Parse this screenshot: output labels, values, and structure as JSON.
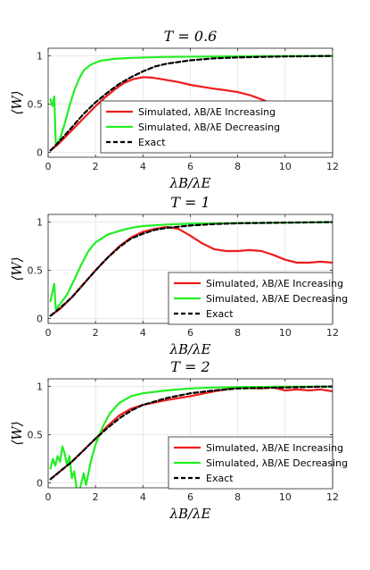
{
  "chart_data": [
    {
      "type": "line",
      "title": "T = 0.6",
      "xlabel": "λB/λE",
      "ylabel": "⟨W⟩",
      "xlim": [
        0,
        12
      ],
      "ylim": [
        -0.05,
        1.08
      ],
      "xticks": [
        "0",
        "2",
        "4",
        "6",
        "8",
        "10",
        "12"
      ],
      "yticks": [
        "0",
        "0.5",
        "1"
      ],
      "grid": true,
      "legend_position": "center-right",
      "series": [
        {
          "name": "Simulated, λB/λE Increasing",
          "color": "#ee1c1c",
          "dash": false,
          "points": [
            [
              0.1,
              0.02
            ],
            [
              0.4,
              0.08
            ],
            [
              0.8,
              0.18
            ],
            [
              1.2,
              0.28
            ],
            [
              1.6,
              0.38
            ],
            [
              2.0,
              0.48
            ],
            [
              2.4,
              0.57
            ],
            [
              2.8,
              0.65
            ],
            [
              3.2,
              0.72
            ],
            [
              3.6,
              0.76
            ],
            [
              4.0,
              0.78
            ],
            [
              4.4,
              0.775
            ],
            [
              5.0,
              0.75
            ],
            [
              5.5,
              0.73
            ],
            [
              6.0,
              0.7
            ],
            [
              6.5,
              0.68
            ],
            [
              7.0,
              0.66
            ],
            [
              7.5,
              0.645
            ],
            [
              8.0,
              0.625
            ],
            [
              8.5,
              0.595
            ],
            [
              9.0,
              0.55
            ],
            [
              9.5,
              0.5
            ],
            [
              10.0,
              0.455
            ],
            [
              10.5,
              0.42
            ],
            [
              11.0,
              0.4
            ],
            [
              11.5,
              0.395
            ],
            [
              12.0,
              0.4
            ]
          ]
        },
        {
          "name": "Simulated, λB/λE Decreasing",
          "color": "#22ee22",
          "dash": false,
          "points": [
            [
              0.1,
              0.55
            ],
            [
              0.18,
              0.48
            ],
            [
              0.26,
              0.58
            ],
            [
              0.32,
              0.1
            ],
            [
              0.4,
              0.1
            ],
            [
              0.5,
              0.14
            ],
            [
              0.7,
              0.3
            ],
            [
              0.9,
              0.48
            ],
            [
              1.1,
              0.64
            ],
            [
              1.3,
              0.76
            ],
            [
              1.5,
              0.85
            ],
            [
              1.8,
              0.91
            ],
            [
              2.2,
              0.95
            ],
            [
              2.8,
              0.97
            ],
            [
              3.5,
              0.98
            ],
            [
              5.0,
              0.99
            ],
            [
              7.0,
              0.995
            ],
            [
              9.0,
              0.998
            ],
            [
              12.0,
              1.0
            ]
          ]
        },
        {
          "name": "Exact",
          "color": "#000000",
          "dash": true,
          "points": [
            [
              0.1,
              0.02
            ],
            [
              0.5,
              0.12
            ],
            [
              1.0,
              0.26
            ],
            [
              1.5,
              0.4
            ],
            [
              2.0,
              0.52
            ],
            [
              2.5,
              0.62
            ],
            [
              3.0,
              0.71
            ],
            [
              3.5,
              0.78
            ],
            [
              4.0,
              0.84
            ],
            [
              4.5,
              0.89
            ],
            [
              5.0,
              0.92
            ],
            [
              6.0,
              0.955
            ],
            [
              7.0,
              0.975
            ],
            [
              8.0,
              0.985
            ],
            [
              9.0,
              0.99
            ],
            [
              10.0,
              0.995
            ],
            [
              12.0,
              1.0
            ]
          ]
        }
      ]
    },
    {
      "type": "line",
      "title": "T = 1",
      "xlabel": "λB/λE",
      "ylabel": "⟨W⟩",
      "xlim": [
        0,
        12
      ],
      "ylim": [
        -0.05,
        1.08
      ],
      "xticks": [
        "0",
        "2",
        "4",
        "6",
        "8",
        "10",
        "12"
      ],
      "yticks": [
        "0",
        "0.5",
        "1"
      ],
      "grid": true,
      "legend_position": "bottom-right",
      "series": [
        {
          "name": "Simulated, λB/λE Increasing",
          "color": "#ee1c1c",
          "dash": false,
          "points": [
            [
              0.1,
              0.03
            ],
            [
              0.5,
              0.1
            ],
            [
              1.0,
              0.22
            ],
            [
              1.5,
              0.36
            ],
            [
              2.0,
              0.5
            ],
            [
              2.5,
              0.63
            ],
            [
              3.0,
              0.75
            ],
            [
              3.5,
              0.84
            ],
            [
              4.0,
              0.9
            ],
            [
              4.5,
              0.93
            ],
            [
              5.0,
              0.95
            ],
            [
              5.5,
              0.93
            ],
            [
              6.0,
              0.86
            ],
            [
              6.5,
              0.78
            ],
            [
              7.0,
              0.72
            ],
            [
              7.5,
              0.7
            ],
            [
              8.0,
              0.7
            ],
            [
              8.5,
              0.71
            ],
            [
              9.0,
              0.7
            ],
            [
              9.5,
              0.66
            ],
            [
              10.0,
              0.61
            ],
            [
              10.5,
              0.58
            ],
            [
              11.0,
              0.58
            ],
            [
              11.5,
              0.59
            ],
            [
              12.0,
              0.58
            ]
          ]
        },
        {
          "name": "Simulated, λB/λE Decreasing",
          "color": "#22ee22",
          "dash": false,
          "points": [
            [
              0.1,
              0.18
            ],
            [
              0.18,
              0.28
            ],
            [
              0.26,
              0.36
            ],
            [
              0.32,
              0.1
            ],
            [
              0.4,
              0.12
            ],
            [
              0.5,
              0.15
            ],
            [
              0.8,
              0.25
            ],
            [
              1.1,
              0.4
            ],
            [
              1.4,
              0.56
            ],
            [
              1.7,
              0.7
            ],
            [
              2.0,
              0.79
            ],
            [
              2.5,
              0.87
            ],
            [
              3.0,
              0.91
            ],
            [
              3.5,
              0.94
            ],
            [
              4.0,
              0.96
            ],
            [
              5.0,
              0.975
            ],
            [
              6.0,
              0.985
            ],
            [
              8.0,
              0.99
            ],
            [
              10.0,
              0.995
            ],
            [
              12.0,
              1.0
            ]
          ]
        },
        {
          "name": "Exact",
          "color": "#000000",
          "dash": true,
          "points": [
            [
              0.1,
              0.03
            ],
            [
              0.5,
              0.11
            ],
            [
              1.0,
              0.22
            ],
            [
              1.5,
              0.36
            ],
            [
              2.0,
              0.5
            ],
            [
              2.5,
              0.63
            ],
            [
              3.0,
              0.74
            ],
            [
              3.5,
              0.83
            ],
            [
              4.0,
              0.88
            ],
            [
              4.5,
              0.92
            ],
            [
              5.0,
              0.94
            ],
            [
              6.0,
              0.965
            ],
            [
              7.0,
              0.98
            ],
            [
              8.0,
              0.988
            ],
            [
              10.0,
              0.995
            ],
            [
              12.0,
              1.0
            ]
          ]
        }
      ]
    },
    {
      "type": "line",
      "title": "T = 2",
      "xlabel": "λB/λE",
      "ylabel": "⟨W⟩",
      "xlim": [
        0,
        12
      ],
      "ylim": [
        -0.05,
        1.08
      ],
      "xticks": [
        "0",
        "2",
        "4",
        "6",
        "8",
        "10",
        "12"
      ],
      "yticks": [
        "0",
        "0.5",
        "1"
      ],
      "grid": true,
      "legend_position": "bottom-right",
      "series": [
        {
          "name": "Simulated, λB/λE Increasing",
          "color": "#ee1c1c",
          "dash": false,
          "points": [
            [
              0.1,
              0.04
            ],
            [
              0.5,
              0.12
            ],
            [
              1.0,
              0.22
            ],
            [
              1.5,
              0.34
            ],
            [
              2.0,
              0.46
            ],
            [
              2.5,
              0.59
            ],
            [
              3.0,
              0.7
            ],
            [
              3.5,
              0.77
            ],
            [
              4.0,
              0.81
            ],
            [
              5.0,
              0.86
            ],
            [
              6.0,
              0.9
            ],
            [
              7.0,
              0.95
            ],
            [
              8.0,
              0.99
            ],
            [
              9.0,
              0.98
            ],
            [
              9.5,
              0.99
            ],
            [
              10.0,
              0.96
            ],
            [
              10.5,
              0.97
            ],
            [
              11.0,
              0.96
            ],
            [
              11.5,
              0.97
            ],
            [
              12.0,
              0.95
            ]
          ]
        },
        {
          "name": "Simulated, λB/λE Decreasing",
          "color": "#22ee22",
          "dash": false,
          "points": [
            [
              0.1,
              0.15
            ],
            [
              0.2,
              0.25
            ],
            [
              0.3,
              0.18
            ],
            [
              0.4,
              0.28
            ],
            [
              0.5,
              0.22
            ],
            [
              0.6,
              0.38
            ],
            [
              0.7,
              0.3
            ],
            [
              0.8,
              0.18
            ],
            [
              0.9,
              0.28
            ],
            [
              1.0,
              0.05
            ],
            [
              1.1,
              0.12
            ],
            [
              1.2,
              -0.05
            ],
            [
              1.3,
              -0.1
            ],
            [
              1.4,
              0.0
            ],
            [
              1.5,
              0.1
            ],
            [
              1.6,
              -0.02
            ],
            [
              1.8,
              0.22
            ],
            [
              2.0,
              0.4
            ],
            [
              2.3,
              0.58
            ],
            [
              2.6,
              0.72
            ],
            [
              3.0,
              0.83
            ],
            [
              3.5,
              0.9
            ],
            [
              4.0,
              0.93
            ],
            [
              5.0,
              0.96
            ],
            [
              6.0,
              0.98
            ],
            [
              7.0,
              0.99
            ],
            [
              8.0,
              0.995
            ],
            [
              10.0,
              0.998
            ],
            [
              12.0,
              1.0
            ]
          ]
        },
        {
          "name": "Exact",
          "color": "#000000",
          "dash": true,
          "points": [
            [
              0.1,
              0.04
            ],
            [
              0.5,
              0.12
            ],
            [
              1.0,
              0.22
            ],
            [
              1.5,
              0.34
            ],
            [
              2.0,
              0.46
            ],
            [
              2.5,
              0.57
            ],
            [
              3.0,
              0.67
            ],
            [
              3.5,
              0.75
            ],
            [
              4.0,
              0.81
            ],
            [
              5.0,
              0.88
            ],
            [
              6.0,
              0.93
            ],
            [
              7.0,
              0.96
            ],
            [
              8.0,
              0.98
            ],
            [
              10.0,
              0.99
            ],
            [
              12.0,
              1.0
            ]
          ]
        }
      ]
    }
  ]
}
